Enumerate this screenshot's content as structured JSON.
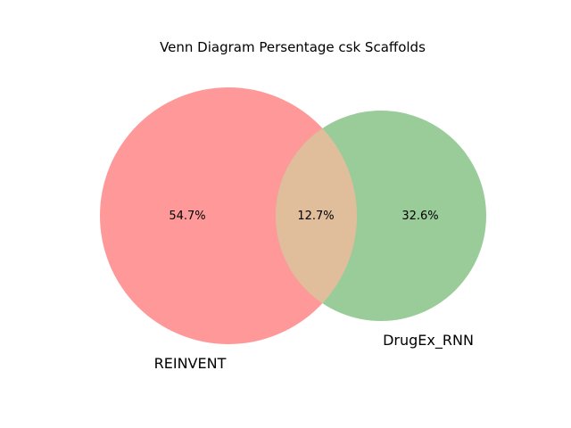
{
  "title": "Venn Diagram Persentage csk Scaffolds",
  "sets": [
    {
      "name": "REINVENT",
      "color": "#ff9999"
    },
    {
      "name": "DrugEx_RNN",
      "color": "#99cc99"
    }
  ],
  "overlap_color": "#e0be9b",
  "regions": {
    "left_only": "54.7%",
    "intersection": "12.7%",
    "right_only": "32.6%"
  },
  "chart_data": {
    "type": "venn",
    "title": "Venn Diagram Persentage csk Scaffolds",
    "sets": [
      "REINVENT",
      "DrugEx_RNN"
    ],
    "values": {
      "REINVENT_only": 54.7,
      "intersection": 12.7,
      "DrugEx_RNN_only": 32.6
    },
    "unit": "%"
  }
}
